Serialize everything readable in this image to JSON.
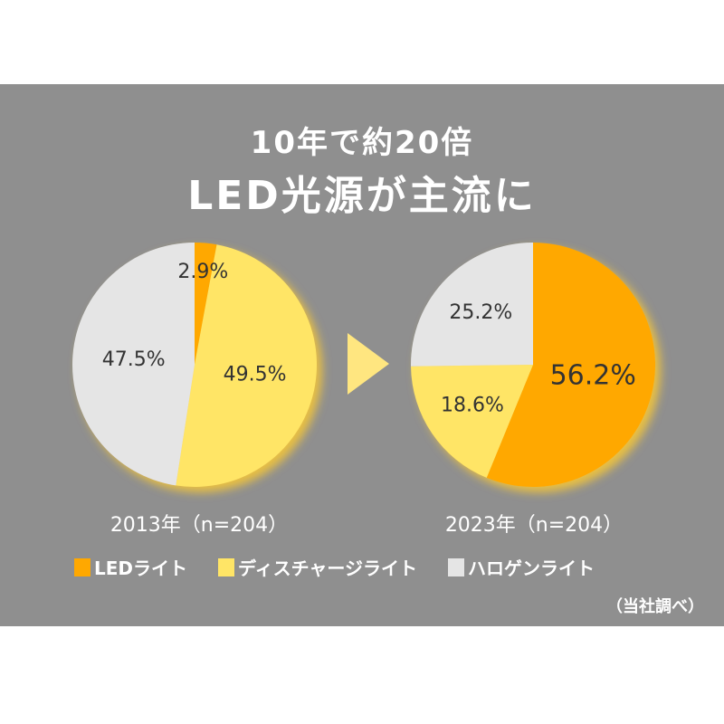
{
  "title_line1": "10年で約20倍",
  "title_line2": "LED光源が主流に",
  "source": "（当社調べ）",
  "colors": {
    "led": "#FFA800",
    "discharge": "#FFE566",
    "halogen": "#E5E5E5",
    "arrow": "#FFE680"
  },
  "chart_data": [
    {
      "type": "pie",
      "title": "2013年（n=204）",
      "categories": [
        "LEDライト",
        "ディスチャージライト",
        "ハロゲンライト"
      ],
      "values": [
        2.9,
        49.5,
        47.5
      ],
      "labels": [
        "2.9%",
        "49.5%",
        "47.5%"
      ]
    },
    {
      "type": "pie",
      "title": "2023年（n=204）",
      "categories": [
        "LEDライト",
        "ディスチャージライト",
        "ハロゲンライト"
      ],
      "values": [
        56.2,
        18.6,
        25.2
      ],
      "labels": [
        "56.2%",
        "18.6%",
        "25.2%"
      ]
    }
  ],
  "legend": [
    "LEDライト",
    "ディスチャージライト",
    "ハロゲンライト"
  ]
}
